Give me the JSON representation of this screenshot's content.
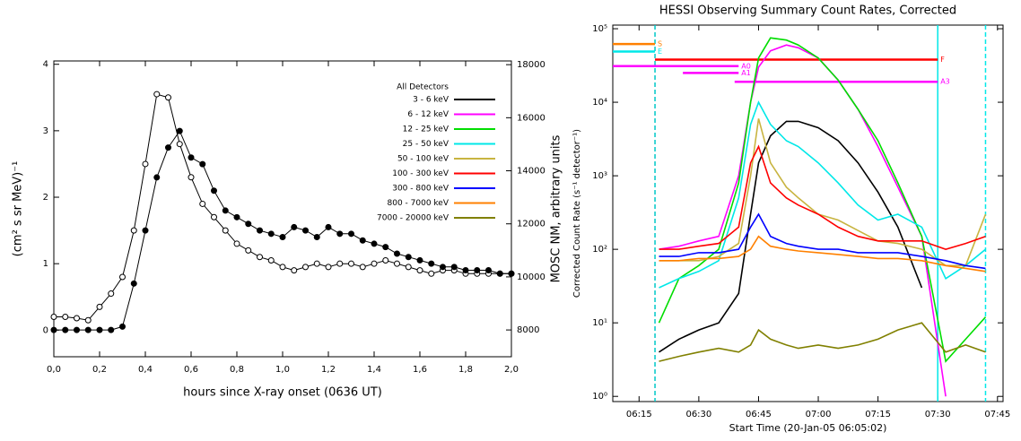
{
  "chart_data": [
    {
      "type": "line",
      "xlabel": "hours since X-ray onset (0636 UT)",
      "ylabel": "(cm² s sr MeV)⁻¹",
      "y2label": "MOSC NM, arbitrary units",
      "xlim": [
        0,
        2
      ],
      "ylim": [
        -0.4,
        4.05
      ],
      "y2lim": [
        6990,
        18140
      ],
      "xticks": [
        {
          "value": 0,
          "label": "0,0"
        },
        {
          "value": 0.2,
          "label": "0,2"
        },
        {
          "value": 0.4,
          "label": "0,4"
        },
        {
          "value": 0.6,
          "label": "0,6"
        },
        {
          "value": 0.8,
          "label": "0,8"
        },
        {
          "value": 1,
          "label": "1,0"
        },
        {
          "value": 1.2,
          "label": "1,2"
        },
        {
          "value": 1.4,
          "label": "1,4"
        },
        {
          "value": 1.6,
          "label": "1,6"
        },
        {
          "value": 1.8,
          "label": "1,8"
        },
        {
          "value": 2,
          "label": "2,0"
        }
      ],
      "yticks": [
        0,
        1,
        2,
        3,
        4
      ],
      "y2ticks": [
        8000,
        10000,
        12000,
        14000,
        16000,
        18000
      ],
      "x": [
        0,
        0.05,
        0.1,
        0.15,
        0.2,
        0.25,
        0.3,
        0.35,
        0.4,
        0.45,
        0.5,
        0.55,
        0.6,
        0.65,
        0.7,
        0.75,
        0.8,
        0.85,
        0.9,
        0.95,
        1,
        1.05,
        1.1,
        1.15,
        1.2,
        1.25,
        1.3,
        1.35,
        1.4,
        1.45,
        1.5,
        1.55,
        1.6,
        1.65,
        1.7,
        1.75,
        1.8,
        1.85,
        1.9,
        1.95,
        2
      ],
      "series": [
        {
          "color": "#000000",
          "marker": "open",
          "values": [
            0.2,
            0.2,
            0.18,
            0.15,
            0.35,
            0.55,
            0.8,
            1.5,
            2.5,
            3.55,
            3.5,
            2.8,
            2.3,
            1.9,
            1.7,
            1.5,
            1.3,
            1.2,
            1.1,
            1.05,
            0.95,
            0.9,
            0.95,
            1.0,
            0.95,
            1.0,
            1.0,
            0.95,
            1.0,
            1.05,
            1.0,
            0.95,
            0.9,
            0.85,
            0.9,
            0.9,
            0.85,
            0.85,
            0.85,
            0.85,
            0.85
          ]
        },
        {
          "color": "#000000",
          "marker": "filled",
          "axis": "y2",
          "values": [
            8000,
            8000,
            8000,
            8000,
            8000,
            8000,
            8125,
            9750,
            11750,
            13750,
            14875,
            15500,
            14500,
            14250,
            13250,
            12500,
            12250,
            12000,
            11750,
            11625,
            11500,
            11875,
            11750,
            11500,
            11875,
            11625,
            11625,
            11375,
            11250,
            11125,
            10875,
            10750,
            10625,
            10500,
            10375,
            10375,
            10250,
            10250,
            10250,
            10125,
            10125
          ]
        }
      ]
    },
    {
      "type": "line",
      "title": "HESSI Observing Summary Count Rates, Corrected",
      "xlabel": "Start Time (20-Jan-05 06:05:02)",
      "ylabel": "Corrected Count Rate (s⁻¹ detector⁻¹)",
      "log_y": true,
      "xlim": [
        8.4,
        106.4
      ],
      "ylim": [
        0.85,
        112000
      ],
      "xticks": [
        {
          "value": 15,
          "label": "06:15"
        },
        {
          "value": 30,
          "label": "06:30"
        },
        {
          "value": 45,
          "label": "06:45"
        },
        {
          "value": 60,
          "label": "07:00"
        },
        {
          "value": 75,
          "label": "07:15"
        },
        {
          "value": 90,
          "label": "07:30"
        },
        {
          "value": 105,
          "label": "07:45"
        }
      ],
      "yticks": [
        {
          "value": 1,
          "label": "10⁰"
        },
        {
          "value": 10,
          "label": "10¹"
        },
        {
          "value": 100,
          "label": "10²"
        },
        {
          "value": 1000,
          "label": "10³"
        },
        {
          "value": 10000,
          "label": "10⁴"
        },
        {
          "value": 100000,
          "label": "10⁵"
        }
      ],
      "legend_title": "All Detectors",
      "x": [
        20,
        25,
        30,
        35,
        40,
        43,
        45,
        48,
        52,
        55,
        60,
        65,
        70,
        75,
        80,
        86,
        92,
        97,
        102
      ],
      "series": [
        {
          "name": "3 - 6 keV",
          "color": "#000000",
          "values": [
            4,
            6,
            8,
            10,
            25,
            300,
            1500,
            3500,
            5500,
            5500,
            4500,
            3000,
            1500,
            600,
            200,
            30,
            null,
            null,
            null
          ]
        },
        {
          "name": "6 - 12 keV",
          "color": "#ff00ff",
          "values": [
            100,
            110,
            130,
            150,
            1000,
            10000,
            30000,
            50000,
            60000,
            55000,
            40000,
            20000,
            8000,
            2500,
            700,
            150,
            1,
            null,
            null
          ]
        },
        {
          "name": "12 - 25 keV",
          "color": "#00dd00",
          "values": [
            10,
            40,
            60,
            100,
            800,
            10000,
            40000,
            75000,
            70000,
            60000,
            40000,
            20000,
            8000,
            3000,
            800,
            150,
            3,
            6,
            12
          ]
        },
        {
          "name": "25 - 50 keV",
          "color": "#00e8e8",
          "values": [
            30,
            40,
            50,
            70,
            500,
            5000,
            10000,
            5000,
            3000,
            2500,
            1500,
            800,
            400,
            250,
            300,
            200,
            40,
            60,
            100
          ]
        },
        {
          "name": "50 - 100 keV",
          "color": "#c8b440",
          "values": [
            70,
            70,
            70,
            80,
            120,
            1000,
            6000,
            1500,
            700,
            500,
            300,
            250,
            180,
            130,
            120,
            100,
            60,
            60,
            300
          ]
        },
        {
          "name": "100 - 300 keV",
          "color": "#ff0000",
          "values": [
            100,
            100,
            110,
            120,
            200,
            1500,
            2500,
            800,
            500,
            400,
            300,
            200,
            150,
            130,
            130,
            130,
            100,
            120,
            150
          ]
        },
        {
          "name": "300 - 800 keV",
          "color": "#0000ff",
          "values": [
            80,
            80,
            90,
            90,
            100,
            200,
            300,
            150,
            120,
            110,
            100,
            100,
            90,
            90,
            90,
            80,
            70,
            60,
            55
          ]
        },
        {
          "name": "800 - 7000 keV",
          "color": "#ff8000",
          "values": [
            70,
            70,
            75,
            75,
            80,
            100,
            150,
            110,
            100,
            95,
            90,
            85,
            80,
            75,
            75,
            70,
            60,
            55,
            50
          ]
        },
        {
          "name": "7000 - 20000 keV",
          "color": "#808000",
          "values": [
            3,
            3.5,
            4,
            4.5,
            4,
            5,
            8,
            6,
            5,
            4.5,
            5,
            4.5,
            5,
            6,
            8,
            10,
            4,
            5,
            4
          ]
        }
      ],
      "flags": [
        {
          "label": "S",
          "color": "#ff8000",
          "x": [
            8.4,
            19
          ],
          "y": 62000
        },
        {
          "label": "E",
          "color": "#00e8e8",
          "x": [
            8.4,
            19
          ],
          "y": 49000
        },
        {
          "label": "F",
          "color": "#ff0000",
          "x": [
            19,
            90
          ],
          "y": 38000
        },
        {
          "label": "A0",
          "color": "#ff00ff",
          "x": [
            8.4,
            40
          ],
          "y": 31000
        },
        {
          "label": "A1",
          "color": "#ff00ff",
          "x": [
            26,
            40
          ],
          "y": 25000
        },
        {
          "label": "A3",
          "color": "#ff00ff",
          "x": [
            39,
            90
          ],
          "y": 19000
        }
      ],
      "vlines": [
        {
          "x": 19,
          "color": "#00c8c8",
          "dashed": true
        },
        {
          "x": 90,
          "color": "#00e8e8",
          "dashed": false
        },
        {
          "x": 102,
          "color": "#00e8e8",
          "dashed": true
        }
      ]
    }
  ]
}
